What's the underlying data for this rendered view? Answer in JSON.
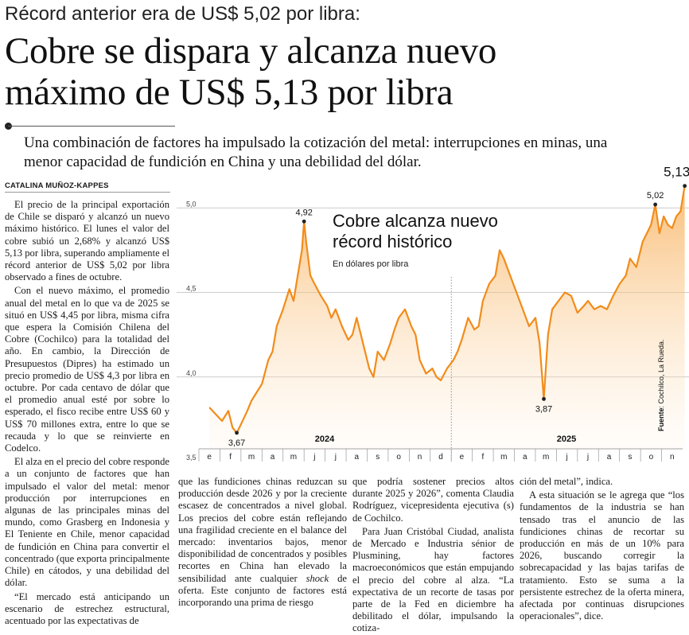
{
  "article": {
    "kicker": "Récord anterior era de US$ 5,02 por libra:",
    "headline_line1": "Cobre se dispara y alcanza nuevo",
    "headline_line2": "máximo de US$ 5,13 por libra",
    "deck": "Una combinación de factores ha impulsado la cotización del metal: interrupciones en minas, una menor capacidad de fundición en China y una debilidad del dólar.",
    "byline": "CATALINA MUÑOZ-KAPPES",
    "col1": [
      "El precio de la principal exportación de Chile se disparó y alcanzó un nuevo máximo histórico. El lunes el valor del cobre subió un 2,68% y alcanzó US$ 5,13 por libra, superando ampliamente el récord anterior de US$ 5,02 por libra observado a fines de octubre.",
      "Con el nuevo máximo, el promedio anual del metal en lo que va de 2025 se situó en US$ 4,45 por libra, misma cifra que espera la Comisión Chilena del Cobre (Cochilco) para la totalidad del año. En cambio, la Dirección de Presupuestos (Dipres) ha estimado un precio promedio de US$ 4,3 por libra en octubre. Por cada centavo de dólar que el promedio anual esté por sobre lo esperado, el fisco recibe entre US$ 60 y US$ 70 millones extra, entre lo que se recauda y lo que se reinvierte en Codelco.",
      "El alza en el precio del cobre responde a un conjunto de factores que han impulsado el valor del metal: menor producción por interrupciones en algunas de las principales minas del mundo, como Grasberg en Indonesia y El Teniente en Chile, menor capacidad de fundición en China para convertir el concentrado (que exporta principalmente Chile) en cátodos, y una debilidad del dólar.",
      "“El mercado está anticipando un escenario de estrechez estructural, acentuado por las expectativas de"
    ],
    "col2": "que las fundiciones chinas reduzcan su producción desde 2026 y por la creciente escasez de concentrados a nivel global. Los precios del cobre están reflejando una fragilidad creciente en el balance del mercado: inventarios bajos, menor disponibilidad de concentrados y posibles recortes en China han elevado la sensibilidad ante cualquier ",
    "col2_italic": "shock",
    "col2_end": " de oferta. Este conjunto de factores está incorporando una prima de riesgo",
    "col3": [
      "que podría sostener precios altos durante 2025 y 2026”, comenta Claudia Rodríguez, vicepresidenta ejecutiva (s) de Cochilco.",
      "Para Juan Cristóbal Ciudad, analista de Mercado e Industria sénior de Plusmining, hay factores macroeconómicos que están empujando el precio del cobre al alza. “La expectativa de un recorte de tasas por parte de la Fed en diciembre ha debilitado el dólar, impulsando la cotiza-"
    ],
    "col4": [
      "ción del metal”, indica.",
      "A esta situación se le agrega que “los fundamentos de la industria se han tensado tras el anuncio de las fundiciones chinas de recortar su producción en más de un 10% para 2026, buscando corregir la sobrecapacidad y las bajas tarifas de tratamiento. Esto se suma a la persistente estrechez de la oferta minera, afectada por continuas disrupciones operacionales”, dice."
    ]
  },
  "chart_data": {
    "type": "area",
    "title": "Cobre alcanza nuevo",
    "title2": "récord histórico",
    "subtitle": "En dólares por libra",
    "source_label": "Fuente",
    "source_text": ": Cochilco, La Rueda.",
    "ylim": [
      3.5,
      5.1
    ],
    "yticks": [
      "5,0",
      "4,5",
      "4,0",
      "3,5"
    ],
    "ytick_values": [
      5.0,
      4.5,
      4.0,
      3.5
    ],
    "months": [
      "e",
      "f",
      "m",
      "a",
      "m",
      "j",
      "j",
      "a",
      "s",
      "o",
      "n",
      "d",
      "e",
      "f",
      "m",
      "a",
      "m",
      "j",
      "j",
      "a",
      "s",
      "o",
      "n"
    ],
    "years": [
      "2024",
      "2025"
    ],
    "callouts": [
      {
        "label": "3,67",
        "x": 1.3,
        "y": 3.67
      },
      {
        "label": "4,92",
        "x": 4.5,
        "y": 4.92
      },
      {
        "label": "3,87",
        "x": 15.9,
        "y": 3.87
      },
      {
        "label": "5,02",
        "x": 21.2,
        "y": 5.02
      },
      {
        "label": "5,13",
        "x": 22.6,
        "y": 5.13
      }
    ],
    "x": [
      0,
      0.3,
      0.6,
      0.9,
      1.1,
      1.3,
      1.5,
      1.8,
      2.0,
      2.2,
      2.5,
      2.8,
      3.0,
      3.2,
      3.5,
      3.8,
      4.0,
      4.2,
      4.4,
      4.5,
      4.6,
      4.8,
      5.0,
      5.3,
      5.6,
      5.8,
      6.0,
      6.3,
      6.6,
      6.8,
      7.0,
      7.3,
      7.6,
      7.8,
      8.0,
      8.3,
      8.6,
      8.8,
      9.0,
      9.3,
      9.6,
      9.8,
      10.0,
      10.3,
      10.6,
      10.8,
      11.0,
      11.3,
      11.6,
      11.8,
      12.0,
      12.3,
      12.6,
      12.8,
      13.0,
      13.3,
      13.6,
      13.8,
      14.0,
      14.3,
      14.6,
      14.9,
      15.2,
      15.5,
      15.7,
      15.9,
      16.1,
      16.3,
      16.6,
      16.9,
      17.2,
      17.5,
      17.8,
      18.0,
      18.3,
      18.6,
      18.9,
      19.2,
      19.5,
      19.8,
      20.0,
      20.3,
      20.6,
      20.8,
      21.0,
      21.2,
      21.4,
      21.6,
      21.8,
      22.0,
      22.2,
      22.4,
      22.6
    ],
    "y": [
      3.82,
      3.78,
      3.74,
      3.8,
      3.7,
      3.67,
      3.72,
      3.8,
      3.86,
      3.9,
      3.96,
      4.1,
      4.15,
      4.3,
      4.4,
      4.52,
      4.45,
      4.6,
      4.75,
      4.92,
      4.8,
      4.6,
      4.55,
      4.48,
      4.42,
      4.35,
      4.4,
      4.3,
      4.22,
      4.25,
      4.35,
      4.2,
      4.05,
      4.0,
      4.15,
      4.1,
      4.2,
      4.28,
      4.35,
      4.4,
      4.3,
      4.25,
      4.1,
      4.02,
      4.05,
      4.0,
      3.98,
      4.05,
      4.1,
      4.15,
      4.22,
      4.35,
      4.28,
      4.3,
      4.45,
      4.55,
      4.6,
      4.75,
      4.7,
      4.6,
      4.5,
      4.4,
      4.3,
      4.35,
      4.2,
      3.87,
      4.25,
      4.4,
      4.45,
      4.5,
      4.48,
      4.38,
      4.42,
      4.45,
      4.4,
      4.42,
      4.4,
      4.48,
      4.55,
      4.6,
      4.7,
      4.65,
      4.8,
      4.85,
      4.9,
      5.02,
      4.85,
      4.95,
      4.9,
      4.88,
      4.95,
      4.98,
      5.13
    ]
  }
}
